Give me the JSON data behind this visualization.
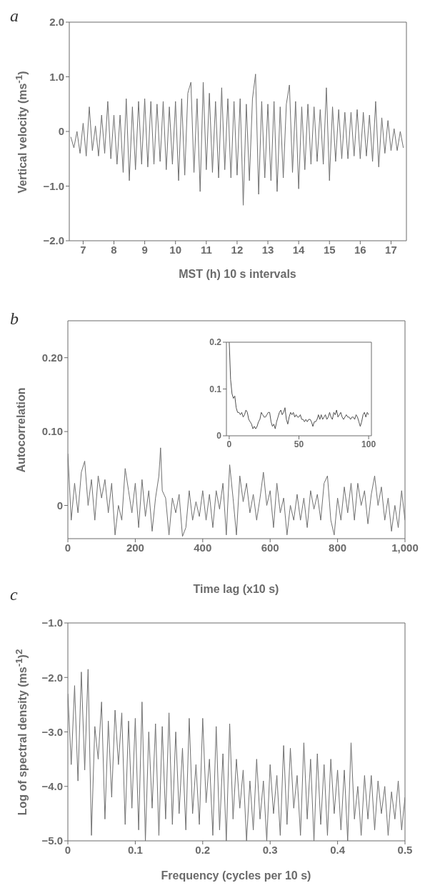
{
  "chart_data": [
    {
      "type": "line",
      "title": "a",
      "xlabel": "MST (h) 10 s intervals",
      "ylabel": "Vertical velocity (ms$^{-1}$)",
      "xlim": [
        6.55,
        17.5
      ],
      "xticks": [
        7,
        8,
        9,
        10,
        11,
        12,
        13,
        14,
        15,
        16,
        17
      ],
      "ylim": [
        -2,
        2
      ],
      "yticks": [
        {
          "value": -2,
          "label": "−2.0"
        },
        {
          "value": -1,
          "label": "−1.0"
        },
        0,
        {
          "value": 1,
          "label": "1.0"
        },
        {
          "value": 2,
          "label": "2.0"
        }
      ],
      "x": [
        6.6,
        6.7,
        6.8,
        6.9,
        7.0,
        7.1,
        7.2,
        7.3,
        7.4,
        7.5,
        7.6,
        7.7,
        7.8,
        7.9,
        8.0,
        8.1,
        8.2,
        8.3,
        8.4,
        8.5,
        8.6,
        8.7,
        8.8,
        8.9,
        9.0,
        9.1,
        9.2,
        9.3,
        9.4,
        9.5,
        9.6,
        9.7,
        9.8,
        9.9,
        10.0,
        10.1,
        10.2,
        10.3,
        10.4,
        10.5,
        10.6,
        10.7,
        10.8,
        10.9,
        11.0,
        11.1,
        11.2,
        11.3,
        11.4,
        11.5,
        11.6,
        11.7,
        11.8,
        11.9,
        12.0,
        12.1,
        12.2,
        12.3,
        12.4,
        12.5,
        12.6,
        12.7,
        12.8,
        12.9,
        13.0,
        13.1,
        13.2,
        13.3,
        13.4,
        13.5,
        13.6,
        13.7,
        13.8,
        13.9,
        14.0,
        14.1,
        14.2,
        14.3,
        14.4,
        14.5,
        14.6,
        14.7,
        14.8,
        14.9,
        15.0,
        15.1,
        15.2,
        15.3,
        15.4,
        15.5,
        15.6,
        15.7,
        15.8,
        15.9,
        16.0,
        16.1,
        16.2,
        16.3,
        16.4,
        16.5,
        16.6,
        16.7,
        16.8,
        16.9,
        17.0,
        17.1,
        17.2,
        17.3,
        17.4
      ],
      "series": [
        {
          "color": "#707070",
          "values": [
            -0.1,
            -0.3,
            0.0,
            -0.4,
            0.15,
            -0.45,
            0.45,
            -0.35,
            0.1,
            -0.45,
            0.3,
            -0.4,
            0.55,
            -0.5,
            0.3,
            -0.6,
            0.3,
            -0.75,
            0.6,
            -0.9,
            0.45,
            -0.7,
            0.55,
            -0.6,
            0.6,
            -0.65,
            0.55,
            -0.6,
            0.5,
            -0.55,
            0.55,
            -0.7,
            0.45,
            -0.6,
            0.55,
            -0.9,
            0.6,
            -0.8,
            0.7,
            0.9,
            -0.75,
            0.6,
            -1.1,
            0.9,
            -0.7,
            0.7,
            -0.75,
            0.55,
            -0.85,
            0.8,
            -0.7,
            0.6,
            -0.85,
            0.55,
            -0.8,
            0.6,
            -1.35,
            0.5,
            -0.9,
            0.6,
            1.05,
            -1.15,
            0.55,
            -0.85,
            0.5,
            -0.9,
            0.55,
            -1.1,
            0.45,
            -0.85,
            0.5,
            0.85,
            -0.75,
            0.55,
            -1.05,
            0.45,
            -0.7,
            0.5,
            -0.6,
            0.45,
            -0.55,
            0.4,
            -0.6,
            0.8,
            -0.9,
            0.45,
            -0.55,
            0.4,
            -0.5,
            0.35,
            -0.5,
            0.35,
            -0.45,
            0.4,
            -0.5,
            0.35,
            -0.45,
            0.3,
            -0.55,
            0.55,
            -0.65,
            0.25,
            -0.4,
            0.2,
            -0.35,
            0.05,
            -0.35,
            0.0,
            -0.3
          ]
        }
      ]
    },
    {
      "type": "line",
      "title": "b",
      "xlabel": "Time lag (x10 s)",
      "ylabel": "Autocorrelation",
      "xlim": [
        0,
        1000
      ],
      "xticks": [
        0,
        200,
        400,
        600,
        800,
        {
          "value": 1000,
          "label": "1,000"
        }
      ],
      "ylim": [
        -0.045,
        0.25
      ],
      "yticks": [
        0,
        {
          "value": 0.1,
          "label": "0.10"
        },
        {
          "value": 0.2,
          "label": "0.20"
        }
      ],
      "x": [
        0,
        10,
        20,
        30,
        40,
        50,
        60,
        70,
        80,
        90,
        100,
        110,
        120,
        130,
        140,
        150,
        160,
        170,
        180,
        190,
        200,
        210,
        220,
        230,
        240,
        250,
        260,
        270,
        275,
        280,
        290,
        300,
        310,
        320,
        330,
        340,
        350,
        360,
        370,
        380,
        390,
        400,
        410,
        420,
        430,
        440,
        450,
        460,
        470,
        480,
        490,
        500,
        510,
        520,
        530,
        540,
        550,
        560,
        570,
        580,
        590,
        600,
        610,
        620,
        630,
        640,
        650,
        660,
        670,
        680,
        690,
        700,
        710,
        720,
        730,
        740,
        750,
        760,
        770,
        780,
        790,
        800,
        810,
        820,
        830,
        840,
        850,
        860,
        870,
        880,
        890,
        900,
        910,
        920,
        930,
        940,
        950,
        960,
        970,
        980,
        990,
        1000
      ],
      "series": [
        {
          "color": "#707070",
          "values": [
            0.07,
            -0.02,
            0.03,
            -0.01,
            0.045,
            0.06,
            0.0,
            0.035,
            -0.02,
            0.04,
            0.01,
            0.035,
            -0.01,
            0.03,
            -0.04,
            0.0,
            -0.02,
            0.05,
            0.02,
            -0.01,
            0.03,
            -0.03,
            0.035,
            -0.015,
            0.02,
            -0.035,
            0.01,
            0.04,
            0.078,
            0.02,
            0.01,
            -0.04,
            0.01,
            -0.01,
            0.015,
            -0.042,
            -0.03,
            0.02,
            -0.02,
            0.005,
            -0.015,
            0.02,
            -0.02,
            0.015,
            -0.03,
            0.02,
            -0.005,
            0.03,
            -0.04,
            0.055,
            0.01,
            -0.04,
            0.04,
            0.005,
            0.03,
            -0.01,
            0.015,
            -0.02,
            0.01,
            0.045,
            0.0,
            0.02,
            -0.03,
            0.03,
            -0.01,
            0.01,
            -0.04,
            0.0,
            -0.02,
            0.015,
            -0.02,
            0.01,
            -0.03,
            0.02,
            -0.005,
            0.015,
            -0.02,
            0.03,
            0.04,
            -0.02,
            -0.04,
            0.01,
            -0.02,
            0.025,
            -0.01,
            0.03,
            -0.02,
            0.03,
            0.0,
            0.02,
            -0.025,
            0.015,
            0.04,
            0.0,
            0.025,
            -0.02,
            0.01,
            -0.035,
            0.0,
            -0.03,
            0.02,
            -0.02
          ]
        }
      ]
    },
    {
      "type": "line",
      "xlim": [
        -2,
        102
      ],
      "xticks": [
        0,
        50,
        100
      ],
      "ylim": [
        0,
        0.2
      ],
      "yticks": [
        0,
        0.1,
        0.2
      ],
      "x": [
        0,
        1,
        2,
        3,
        4,
        5,
        6,
        7,
        8,
        9,
        10,
        11,
        12,
        13,
        14,
        15,
        16,
        17,
        18,
        19,
        20,
        21,
        22,
        23,
        24,
        25,
        26,
        27,
        28,
        29,
        30,
        31,
        32,
        33,
        34,
        35,
        36,
        37,
        38,
        39,
        40,
        41,
        42,
        43,
        44,
        45,
        46,
        47,
        48,
        49,
        50,
        51,
        52,
        53,
        54,
        55,
        56,
        57,
        58,
        59,
        60,
        61,
        62,
        63,
        64,
        65,
        66,
        67,
        68,
        69,
        70,
        71,
        72,
        73,
        74,
        75,
        76,
        77,
        78,
        79,
        80,
        81,
        82,
        83,
        84,
        85,
        86,
        87,
        88,
        89,
        90,
        91,
        92,
        93,
        94,
        95,
        96,
        97,
        98,
        99,
        100
      ],
      "series": [
        {
          "color": "#505050",
          "values": [
            0.2,
            0.12,
            0.09,
            0.08,
            0.085,
            0.06,
            0.05,
            0.05,
            0.045,
            0.05,
            0.04,
            0.045,
            0.055,
            0.05,
            0.035,
            0.03,
            0.025,
            0.015,
            0.02,
            0.015,
            0.02,
            0.03,
            0.035,
            0.05,
            0.045,
            0.04,
            0.04,
            0.045,
            0.05,
            0.05,
            0.03,
            0.02,
            0.025,
            0.015,
            0.03,
            0.04,
            0.05,
            0.055,
            0.045,
            0.05,
            0.06,
            0.035,
            0.025,
            0.04,
            0.05,
            0.045,
            0.05,
            0.04,
            0.045,
            0.04,
            0.04,
            0.045,
            0.035,
            0.035,
            0.03,
            0.035,
            0.03,
            0.035,
            0.035,
            0.03,
            0.02,
            0.03,
            0.03,
            0.035,
            0.045,
            0.035,
            0.045,
            0.035,
            0.04,
            0.045,
            0.035,
            0.04,
            0.05,
            0.04,
            0.035,
            0.05,
            0.045,
            0.055,
            0.04,
            0.045,
            0.05,
            0.04,
            0.035,
            0.04,
            0.045,
            0.04,
            0.04,
            0.035,
            0.04,
            0.04,
            0.035,
            0.045,
            0.04,
            0.03,
            0.02,
            0.03,
            0.045,
            0.05,
            0.04,
            0.05,
            0.045
          ]
        }
      ]
    },
    {
      "type": "line",
      "title": "c",
      "xlabel": "Frequency (cycles per 10 s)",
      "ylabel": "Log of spectral density (ms$^{-1}$)$^{2}$",
      "xlim": [
        0,
        0.5
      ],
      "xticks": [
        0,
        0.1,
        0.2,
        0.3,
        0.4,
        0.5
      ],
      "ylim": [
        -5,
        -1
      ],
      "yticks": [
        {
          "value": -5,
          "label": "−5.0"
        },
        {
          "value": -4,
          "label": "−4.0"
        },
        {
          "value": -3,
          "label": "−3.0"
        },
        {
          "value": -2,
          "label": "−2.0"
        },
        {
          "value": -1,
          "label": "−1.0"
        }
      ],
      "x": [
        0,
        0.005,
        0.01,
        0.015,
        0.02,
        0.025,
        0.03,
        0.035,
        0.04,
        0.045,
        0.05,
        0.055,
        0.06,
        0.065,
        0.07,
        0.075,
        0.08,
        0.085,
        0.09,
        0.095,
        0.1,
        0.105,
        0.11,
        0.115,
        0.12,
        0.125,
        0.13,
        0.135,
        0.14,
        0.145,
        0.15,
        0.155,
        0.16,
        0.165,
        0.17,
        0.175,
        0.18,
        0.185,
        0.19,
        0.195,
        0.2,
        0.205,
        0.21,
        0.215,
        0.22,
        0.225,
        0.23,
        0.235,
        0.24,
        0.245,
        0.25,
        0.255,
        0.26,
        0.265,
        0.27,
        0.275,
        0.28,
        0.285,
        0.29,
        0.295,
        0.3,
        0.305,
        0.31,
        0.315,
        0.32,
        0.325,
        0.33,
        0.335,
        0.34,
        0.345,
        0.35,
        0.355,
        0.36,
        0.365,
        0.37,
        0.375,
        0.38,
        0.385,
        0.39,
        0.395,
        0.4,
        0.405,
        0.41,
        0.415,
        0.42,
        0.425,
        0.43,
        0.435,
        0.44,
        0.445,
        0.45,
        0.455,
        0.46,
        0.465,
        0.47,
        0.475,
        0.48,
        0.485,
        0.49,
        0.495,
        0.5
      ],
      "series": [
        {
          "color": "#707070",
          "values": [
            -2.3,
            -3.6,
            -2.15,
            -3.9,
            -1.9,
            -3.7,
            -1.85,
            -4.9,
            -2.9,
            -3.5,
            -2.45,
            -4.6,
            -2.8,
            -4.2,
            -2.6,
            -3.6,
            -2.65,
            -4.7,
            -2.8,
            -4.4,
            -2.75,
            -4.8,
            -2.45,
            -5.0,
            -3.0,
            -4.4,
            -2.85,
            -4.9,
            -2.9,
            -4.6,
            -2.65,
            -4.7,
            -3.0,
            -4.5,
            -3.3,
            -4.8,
            -2.75,
            -4.5,
            -3.6,
            -4.7,
            -2.75,
            -4.3,
            -3.5,
            -4.9,
            -2.9,
            -4.8,
            -3.4,
            -5.0,
            -2.85,
            -4.6,
            -3.5,
            -4.4,
            -3.7,
            -5.0,
            -3.9,
            -4.8,
            -3.5,
            -4.6,
            -3.9,
            -5.0,
            -3.6,
            -4.5,
            -3.8,
            -4.9,
            -3.25,
            -4.7,
            -3.3,
            -4.4,
            -3.8,
            -4.9,
            -3.2,
            -4.6,
            -3.5,
            -5.0,
            -3.4,
            -4.7,
            -3.6,
            -4.9,
            -3.5,
            -4.5,
            -3.7,
            -4.8,
            -3.7,
            -5.0,
            -3.2,
            -4.6,
            -4.0,
            -4.9,
            -3.8,
            -4.6,
            -3.8,
            -4.8,
            -3.9,
            -4.5,
            -4.0,
            -4.9,
            -4.1,
            -4.6,
            -3.9,
            -4.8,
            -4.2
          ]
        }
      ]
    }
  ]
}
